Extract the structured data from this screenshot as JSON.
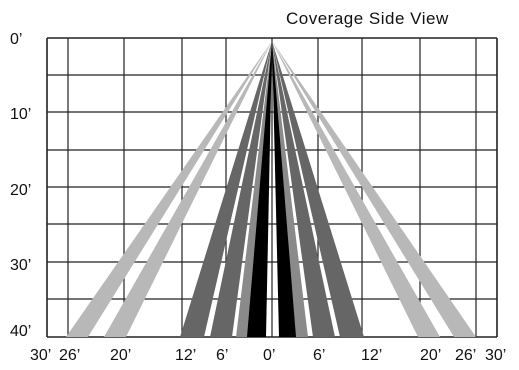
{
  "title": "Coverage Side View",
  "depth_labels": [
    "0’",
    "10’",
    "20’",
    "30’",
    "40’"
  ],
  "width_labels": [
    "30’",
    "26’",
    "20’",
    "12’",
    "6’",
    "0’",
    "6’",
    "12’",
    "20’",
    "26’",
    "30’"
  ],
  "colors": {
    "grid": "#222222",
    "outer_beams": "#b8b8b8",
    "middle_beams": "#666666",
    "inner_beams": "#8a8a8a",
    "center_beams": "#000000"
  },
  "beam_spreads_ft_at_40ft": [
    26,
    20,
    12,
    6,
    0
  ]
}
